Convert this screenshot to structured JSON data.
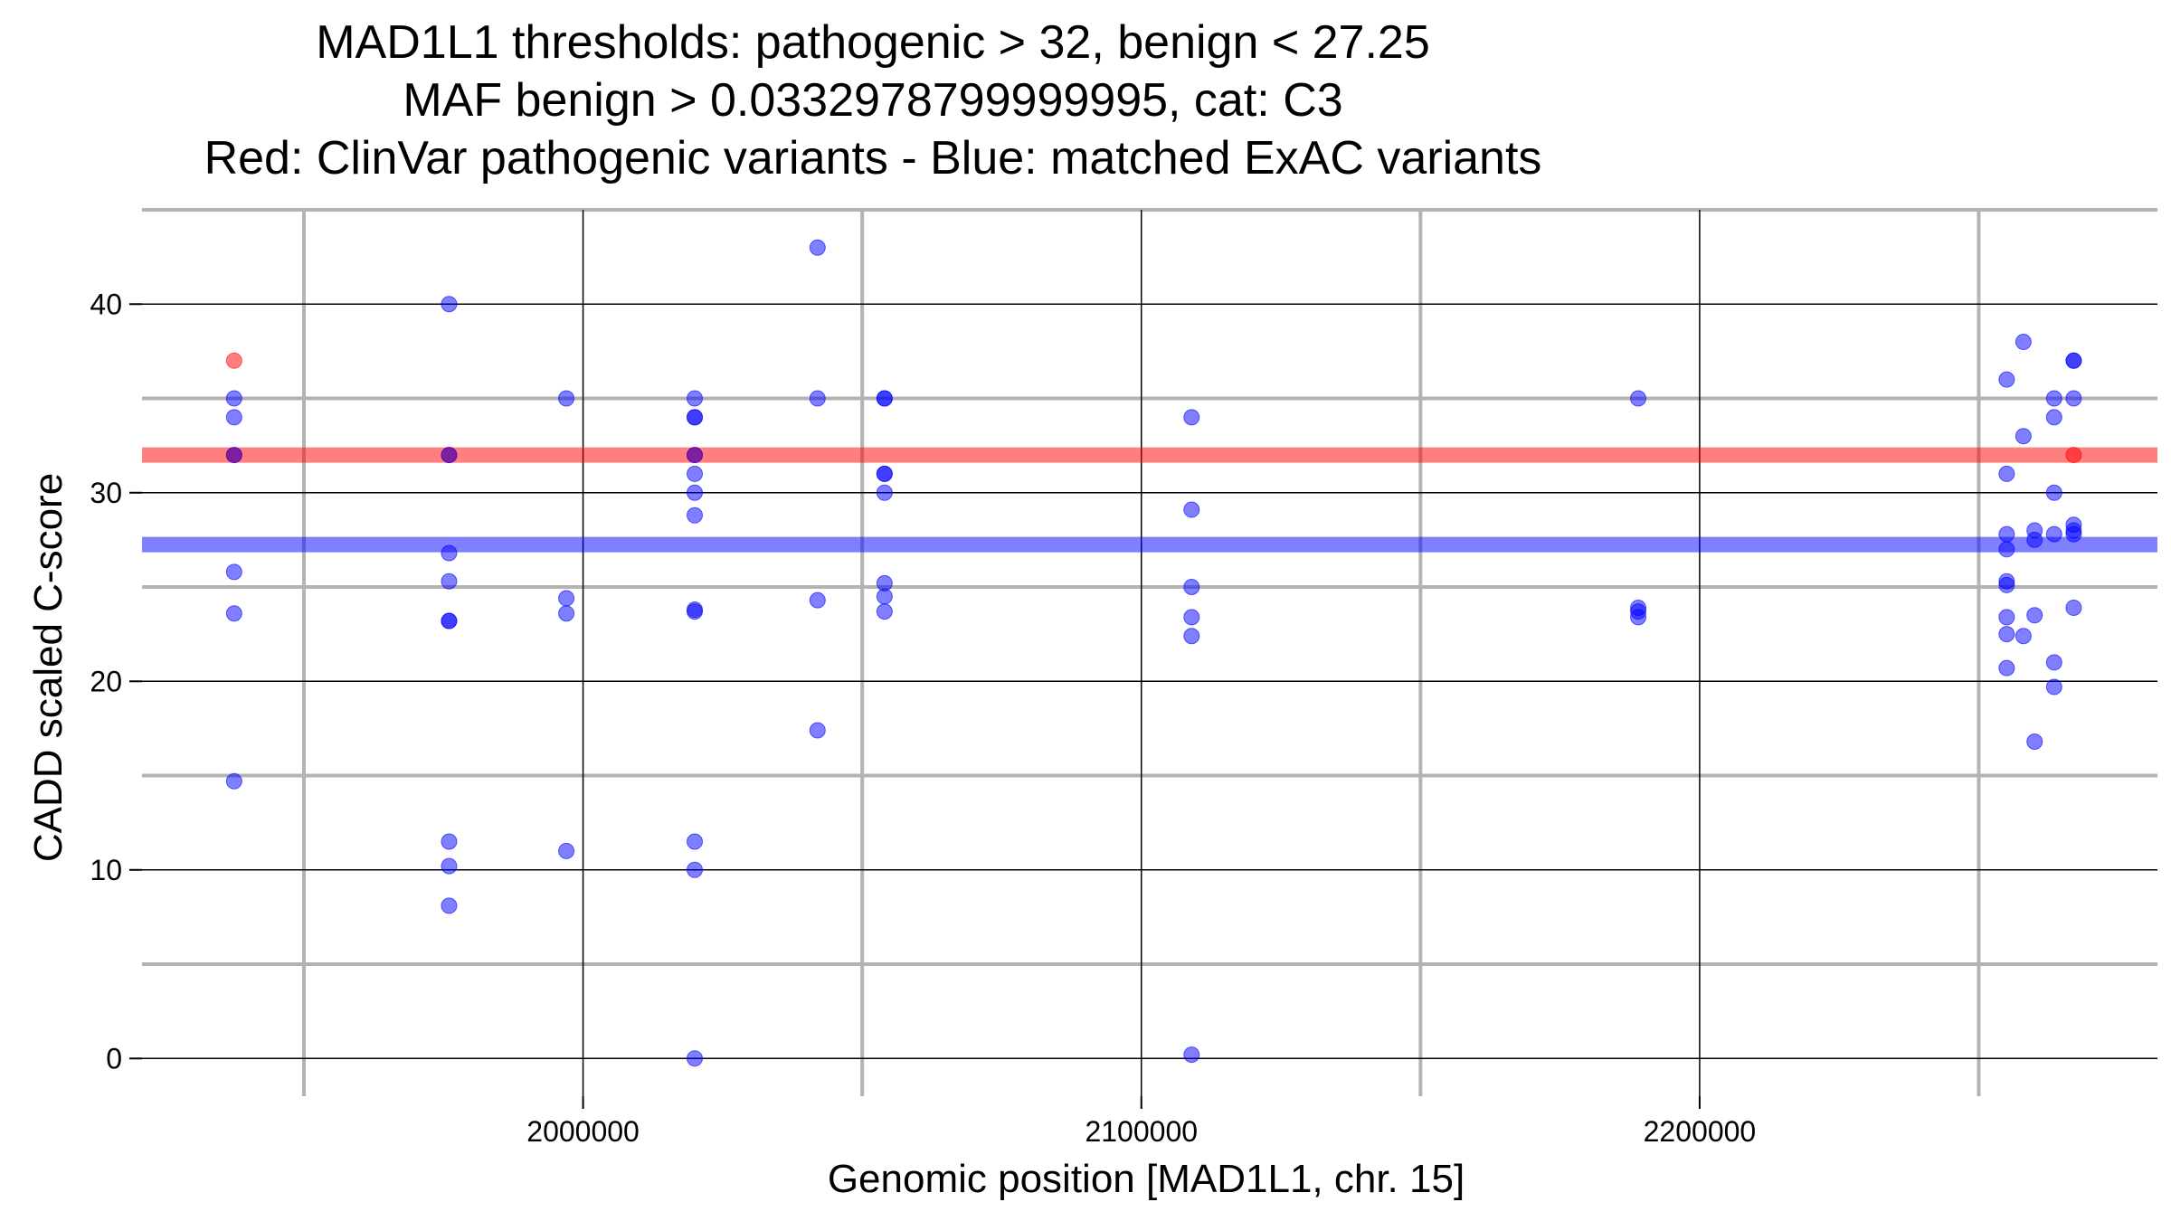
{
  "chart_data": {
    "type": "scatter",
    "title_lines": [
      "MAD1L1 thresholds: pathogenic > 32, benign < 27.25",
      "MAF benign > 0.0332978799999995, cat: C3",
      "Red: ClinVar pathogenic variants - Blue: matched ExAC variants"
    ],
    "xlabel": "Genomic position [MAD1L1, chr. 15]",
    "ylabel": "CADD scaled C-score",
    "xlim": [
      1921000,
      2282000
    ],
    "ylim": [
      -2,
      45
    ],
    "x_ticks": [
      2000000,
      2100000,
      2200000
    ],
    "x_tick_labels": [
      "2000000",
      "2100000",
      "2200000"
    ],
    "y_ticks": [
      0,
      10,
      20,
      30,
      40
    ],
    "y_tick_labels": [
      "0",
      "10",
      "20",
      "30",
      "40"
    ],
    "x_minor_grid": [
      1950000,
      2050000,
      2150000,
      2250000
    ],
    "y_minor_grid": [
      5,
      15,
      25,
      35,
      45
    ],
    "grid": true,
    "thresholds": [
      {
        "series": "pathogenic",
        "value": 32,
        "color": "#ff0000"
      },
      {
        "series": "benign",
        "value": 27.25,
        "color": "#0000ff"
      }
    ],
    "series": [
      {
        "color": "#ff0000",
        "points": [
          [
            1937500,
            37
          ],
          [
            1937500,
            32
          ],
          [
            1976000,
            32
          ],
          [
            2020000,
            32
          ],
          [
            2267000,
            32
          ]
        ]
      },
      {
        "color": "#0000ff",
        "points": [
          [
            1937500,
            35
          ],
          [
            1937500,
            34
          ],
          [
            1937500,
            32
          ],
          [
            1937500,
            25.8
          ],
          [
            1937500,
            23.6
          ],
          [
            1937500,
            14.7
          ],
          [
            1976000,
            40
          ],
          [
            1976000,
            32
          ],
          [
            1976000,
            26.8
          ],
          [
            1976000,
            25.3
          ],
          [
            1976000,
            23.2
          ],
          [
            1976000,
            23.2
          ],
          [
            1976000,
            11.5
          ],
          [
            1976000,
            10.2
          ],
          [
            1976000,
            8.1
          ],
          [
            1997000,
            35
          ],
          [
            1997000,
            24.4
          ],
          [
            1997000,
            23.6
          ],
          [
            1997000,
            11
          ],
          [
            2020000,
            35
          ],
          [
            2020000,
            34
          ],
          [
            2020000,
            34
          ],
          [
            2020000,
            32
          ],
          [
            2020000,
            31
          ],
          [
            2020000,
            30
          ],
          [
            2020000,
            28.8
          ],
          [
            2020000,
            23.8
          ],
          [
            2020000,
            23.7
          ],
          [
            2020000,
            11.5
          ],
          [
            2020000,
            10
          ],
          [
            2020000,
            0
          ],
          [
            2042000,
            43
          ],
          [
            2042000,
            35
          ],
          [
            2042000,
            24.3
          ],
          [
            2042000,
            17.4
          ],
          [
            2054000,
            35
          ],
          [
            2054000,
            35
          ],
          [
            2054000,
            31
          ],
          [
            2054000,
            31
          ],
          [
            2054000,
            30
          ],
          [
            2054000,
            25.2
          ],
          [
            2054000,
            24.5
          ],
          [
            2054000,
            23.7
          ],
          [
            2109000,
            34
          ],
          [
            2109000,
            29.1
          ],
          [
            2109000,
            25
          ],
          [
            2109000,
            23.4
          ],
          [
            2109000,
            22.4
          ],
          [
            2109000,
            0.2
          ],
          [
            2189000,
            35
          ],
          [
            2189000,
            23.9
          ],
          [
            2189000,
            23.7
          ],
          [
            2189000,
            23.4
          ],
          [
            2255000,
            36
          ],
          [
            2255000,
            31
          ],
          [
            2255000,
            27.8
          ],
          [
            2255000,
            27
          ],
          [
            2255000,
            25.3
          ],
          [
            2255000,
            25.1
          ],
          [
            2255000,
            23.4
          ],
          [
            2255000,
            22.5
          ],
          [
            2255000,
            20.7
          ],
          [
            2258000,
            38
          ],
          [
            2258000,
            33
          ],
          [
            2258000,
            22.4
          ],
          [
            2260000,
            28
          ],
          [
            2260000,
            27.5
          ],
          [
            2260000,
            23.5
          ],
          [
            2260000,
            16.8
          ],
          [
            2263500,
            35
          ],
          [
            2263500,
            34
          ],
          [
            2263500,
            30
          ],
          [
            2263500,
            27.8
          ],
          [
            2263500,
            21
          ],
          [
            2263500,
            19.7
          ],
          [
            2267000,
            37
          ],
          [
            2267000,
            37
          ],
          [
            2267000,
            35
          ],
          [
            2267000,
            28.3
          ],
          [
            2267000,
            28
          ],
          [
            2267000,
            27.8
          ],
          [
            2267000,
            23.9
          ]
        ]
      }
    ]
  }
}
